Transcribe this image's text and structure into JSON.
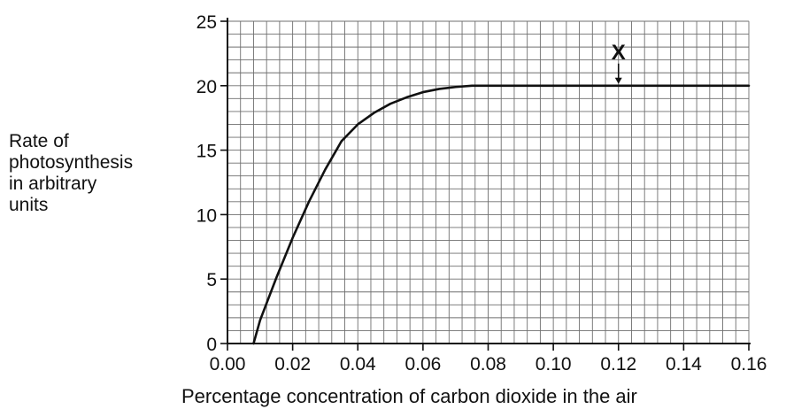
{
  "chart_data": {
    "type": "line",
    "xlabel": "Percentage concentration of carbon dioxide in the air",
    "ylabel_lines": [
      "Rate of",
      "photosynthesis",
      "in arbitrary",
      "units"
    ],
    "xlim": [
      0,
      0.16
    ],
    "ylim": [
      0,
      25
    ],
    "x_ticks": [
      "0.00",
      "0.02",
      "0.04",
      "0.06",
      "0.08",
      "0.10",
      "0.12",
      "0.14",
      "0.16"
    ],
    "y_ticks": [
      "0",
      "5",
      "10",
      "15",
      "20",
      "25"
    ],
    "grid": true,
    "series": [
      {
        "x": [
          0.008,
          0.01,
          0.015,
          0.02,
          0.025,
          0.03,
          0.035,
          0.04,
          0.045,
          0.05,
          0.055,
          0.06,
          0.065,
          0.07,
          0.075,
          0.08,
          0.09,
          0.1,
          0.12,
          0.14,
          0.16
        ],
        "y": [
          0,
          1.8,
          5.1,
          8.2,
          11.0,
          13.5,
          15.7,
          17.0,
          17.9,
          18.6,
          19.1,
          19.5,
          19.75,
          19.9,
          20.0,
          20.0,
          20.0,
          20.0,
          20.0,
          20.0,
          20.0
        ]
      }
    ],
    "annotations": [
      {
        "text": "X",
        "x": 0.12,
        "y": 20
      }
    ]
  },
  "colors": {
    "grid": "#6f6f6f",
    "axis": "#111111",
    "line": "#111111"
  }
}
